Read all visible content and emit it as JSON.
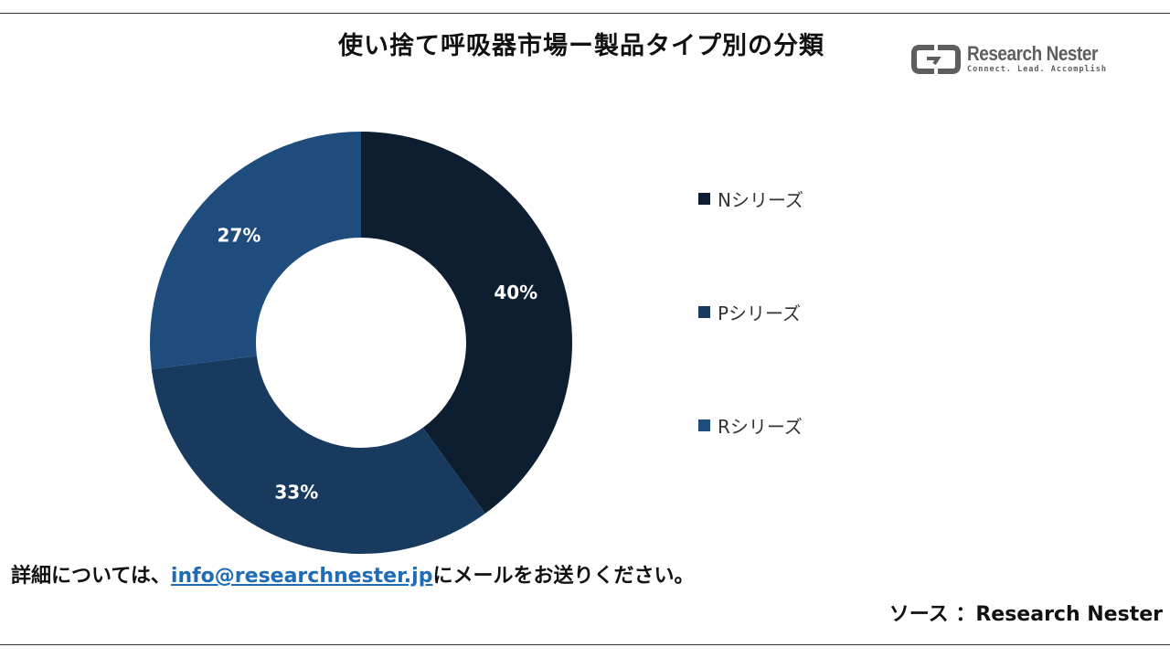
{
  "header": {
    "title": "使い捨て呼吸器市場ー製品タイプ別の分類"
  },
  "logo": {
    "name": "Research Nester",
    "tagline": "Connect. Lead. Accomplish",
    "icon": "research-nester-logo-icon"
  },
  "chart_data": {
    "type": "pie",
    "donut": true,
    "title": "使い捨て呼吸器市場ー製品タイプ別の分類",
    "categories": [
      "Nシリーズ",
      "Pシリーズ",
      "Rシリーズ"
    ],
    "values": [
      40,
      33,
      27
    ],
    "labels": [
      "40%",
      "33%",
      "27%"
    ],
    "colors": [
      "#0d1e30",
      "#173a5e",
      "#1e4c7c"
    ],
    "legend_position": "right"
  },
  "footer": {
    "note_prefix": "詳細については、",
    "email": "info@researchnester.jp",
    "note_suffix": "にメールをお送りください。",
    "source": "ソース ：Research Nester"
  }
}
